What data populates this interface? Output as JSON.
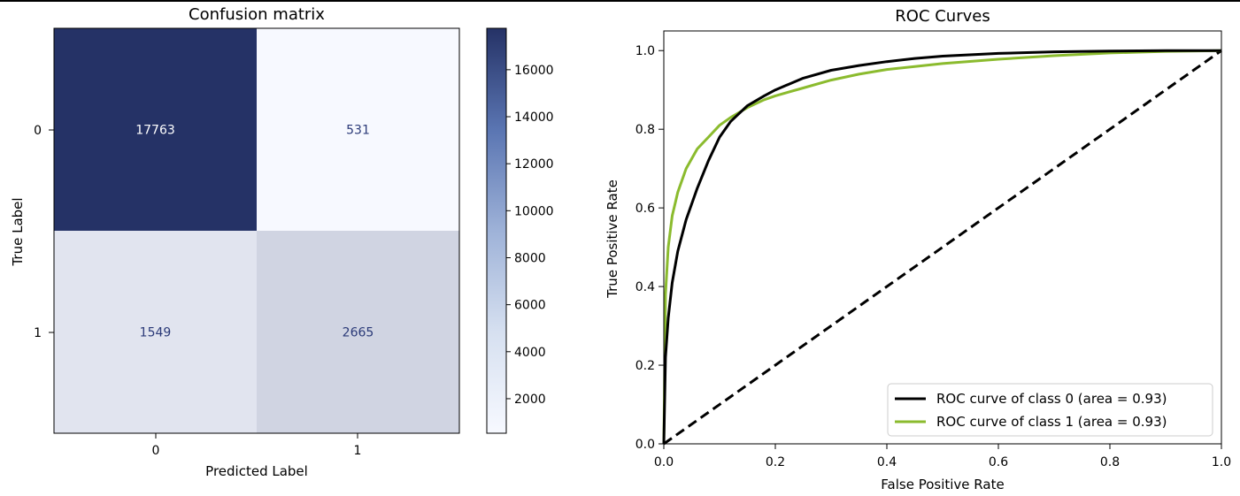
{
  "chart_data": [
    {
      "type": "heatmap",
      "title": "Confusion matrix",
      "xlabel": "Predicted Label",
      "ylabel": "True Label",
      "x_tick_labels": [
        "0",
        "1"
      ],
      "y_tick_labels": [
        "0",
        "1"
      ],
      "matrix": [
        [
          17763,
          531
        ],
        [
          1549,
          2665
        ]
      ],
      "colormap": "Blues-to-navy",
      "colors": {
        "low": "#f7f9ff",
        "high": "#253266"
      },
      "colorbar": {
        "range": [
          531,
          17763
        ],
        "ticks": [
          2000,
          4000,
          6000,
          8000,
          10000,
          12000,
          14000,
          16000
        ]
      }
    },
    {
      "type": "line",
      "title": "ROC Curves",
      "xlabel": "False Positive Rate",
      "ylabel": "True Positive Rate",
      "xlim": [
        0.0,
        1.0
      ],
      "ylim": [
        0.0,
        1.05
      ],
      "x_ticks": [
        "0.0",
        "0.2",
        "0.4",
        "0.6",
        "0.8",
        "1.0"
      ],
      "y_ticks": [
        "0.0",
        "0.2",
        "0.4",
        "0.6",
        "0.8",
        "1.0"
      ],
      "grid": false,
      "legend_position": "lower-right",
      "series": [
        {
          "name": "ROC curve of class 0 (area = 0.93)",
          "color": "#000000",
          "style": "solid",
          "x": [
            0,
            0.003,
            0.008,
            0.015,
            0.025,
            0.04,
            0.06,
            0.08,
            0.1,
            0.12,
            0.15,
            0.18,
            0.2,
            0.25,
            0.3,
            0.35,
            0.4,
            0.45,
            0.5,
            0.6,
            0.7,
            0.8,
            0.9,
            1.0
          ],
          "y": [
            0,
            0.22,
            0.32,
            0.41,
            0.49,
            0.57,
            0.65,
            0.72,
            0.78,
            0.82,
            0.86,
            0.885,
            0.9,
            0.93,
            0.95,
            0.962,
            0.972,
            0.98,
            0.986,
            0.993,
            0.997,
            0.999,
            1.0,
            1.0
          ]
        },
        {
          "name": "ROC curve of class 1 (area = 0.93)",
          "color": "#8bbb2e",
          "style": "solid",
          "x": [
            0,
            0.003,
            0.008,
            0.015,
            0.025,
            0.04,
            0.06,
            0.08,
            0.1,
            0.12,
            0.15,
            0.18,
            0.2,
            0.25,
            0.3,
            0.35,
            0.4,
            0.5,
            0.6,
            0.7,
            0.8,
            0.9,
            1.0
          ],
          "y": [
            0,
            0.38,
            0.5,
            0.58,
            0.64,
            0.7,
            0.75,
            0.78,
            0.81,
            0.83,
            0.855,
            0.875,
            0.885,
            0.905,
            0.925,
            0.94,
            0.952,
            0.967,
            0.978,
            0.987,
            0.994,
            0.998,
            1.0
          ]
        },
        {
          "name": "",
          "color": "#000000",
          "style": "dashed",
          "x": [
            0,
            1
          ],
          "y": [
            0,
            1
          ]
        }
      ]
    }
  ]
}
